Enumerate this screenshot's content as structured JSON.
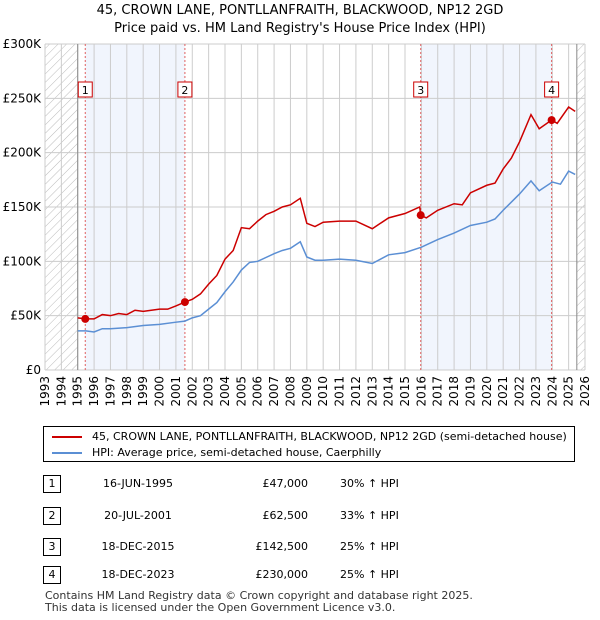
{
  "title": "45, CROWN LANE, PONTLLANFRAITH, BLACKWOOD, NP12 2GD",
  "subtitle": "Price paid vs. HM Land Registry's House Price Index (HPI)",
  "chart_data": {
    "type": "line",
    "xlim": [
      1993,
      2026
    ],
    "ylim": [
      0,
      300000
    ],
    "x_ticks": [
      "1993",
      "1994",
      "1995",
      "1996",
      "1997",
      "1998",
      "1999",
      "2000",
      "2001",
      "2002",
      "2003",
      "2004",
      "2005",
      "2006",
      "2007",
      "2008",
      "2009",
      "2010",
      "2011",
      "2012",
      "2013",
      "2014",
      "2015",
      "2016",
      "2017",
      "2018",
      "2019",
      "2020",
      "2021",
      "2022",
      "2023",
      "2024",
      "2025",
      "2026"
    ],
    "y_ticks": [
      {
        "v": 0,
        "label": "£0"
      },
      {
        "v": 50000,
        "label": "£50K"
      },
      {
        "v": 100000,
        "label": "£100K"
      },
      {
        "v": 150000,
        "label": "£150K"
      },
      {
        "v": 200000,
        "label": "£200K"
      },
      {
        "v": 250000,
        "label": "£250K"
      },
      {
        "v": 300000,
        "label": "£300K"
      }
    ],
    "grid": true,
    "series": [
      {
        "name": "45, CROWN LANE, PONTLLANFRAITH, BLACKWOOD, NP12 2GD (semi-detached house)",
        "color": "#cc0000",
        "x": [
          1995.0,
          1995.46,
          1996,
          1996.5,
          1997,
          1997.5,
          1998,
          1998.5,
          1999,
          2000,
          2000.5,
          2001,
          2001.55,
          2002,
          2002.5,
          2003,
          2003.5,
          2004,
          2004.5,
          2005,
          2005.5,
          2006,
          2006.5,
          2007,
          2007.5,
          2008,
          2008.6,
          2009,
          2009.5,
          2010,
          2011,
          2012,
          2013,
          2013.5,
          2014,
          2015,
          2015.9,
          2015.96,
          2016.3,
          2017,
          2018,
          2018.5,
          2019,
          2020,
          2020.5,
          2021,
          2021.5,
          2022,
          2022.7,
          2023.2,
          2023.96,
          2024.3,
          2025,
          2025.4
        ],
        "y": [
          48000,
          47000,
          47000,
          51000,
          50000,
          52000,
          51000,
          55000,
          54000,
          56000,
          56000,
          59000,
          62500,
          65000,
          70000,
          79000,
          87000,
          102000,
          110000,
          131000,
          130000,
          137000,
          143000,
          146000,
          150000,
          152000,
          158000,
          135000,
          132000,
          136000,
          137000,
          137000,
          130000,
          135000,
          140000,
          144000,
          150000,
          142500,
          140000,
          147000,
          153000,
          152000,
          163000,
          170000,
          172000,
          185000,
          195000,
          210000,
          235000,
          222000,
          230000,
          227000,
          242000,
          238000
        ]
      },
      {
        "name": "HPI: Average price, semi-detached house, Caerphilly",
        "color": "#5b8fd4",
        "x": [
          1995.0,
          1995.5,
          1996,
          1996.5,
          1997,
          1998,
          1999,
          2000,
          2001,
          2001.55,
          2002,
          2002.5,
          2003,
          2003.5,
          2004,
          2004.5,
          2005,
          2005.5,
          2006,
          2007,
          2007.5,
          2008,
          2008.6,
          2009,
          2009.5,
          2010,
          2011,
          2012,
          2013,
          2013.5,
          2014,
          2015,
          2016,
          2017,
          2018,
          2019,
          2020,
          2020.5,
          2021,
          2022,
          2022.7,
          2023.2,
          2024,
          2024.5,
          2025,
          2025.4
        ],
        "y": [
          36000,
          36000,
          35000,
          38000,
          38000,
          39000,
          41000,
          42000,
          44000,
          45000,
          48000,
          50000,
          56000,
          62000,
          72000,
          81000,
          92000,
          99000,
          100000,
          107000,
          110000,
          112000,
          118000,
          104000,
          101000,
          101000,
          102000,
          101000,
          98000,
          102000,
          106000,
          108000,
          113000,
          120000,
          126000,
          133000,
          136000,
          139000,
          147000,
          162000,
          174000,
          165000,
          173000,
          171000,
          183000,
          180000
        ]
      }
    ],
    "sales": [
      {
        "label": "1",
        "x": 1995.46,
        "y": 47000
      },
      {
        "label": "2",
        "x": 2001.55,
        "y": 62500
      },
      {
        "label": "3",
        "x": 2015.96,
        "y": 142500
      },
      {
        "label": "4",
        "x": 2023.96,
        "y": 230000
      }
    ],
    "shaded_ranges": [
      [
        1995.46,
        2001.55
      ],
      [
        2015.96,
        2023.96
      ]
    ],
    "hatched_ranges": [
      [
        1993,
        1995
      ],
      [
        2025.5,
        2026
      ]
    ],
    "legend_position": "below"
  },
  "table": [
    {
      "num": "1",
      "date": "16-JUN-1995",
      "price": "£47,000",
      "hpi": "30% ↑ HPI"
    },
    {
      "num": "2",
      "date": "20-JUL-2001",
      "price": "£62,500",
      "hpi": "33% ↑ HPI"
    },
    {
      "num": "3",
      "date": "18-DEC-2015",
      "price": "£142,500",
      "hpi": "25% ↑ HPI"
    },
    {
      "num": "4",
      "date": "18-DEC-2023",
      "price": "£230,000",
      "hpi": "25% ↑ HPI"
    }
  ],
  "footer": {
    "line1": "Contains HM Land Registry data © Crown copyright and database right 2025.",
    "line2": "This data is licensed under the Open Government Licence v3.0."
  }
}
